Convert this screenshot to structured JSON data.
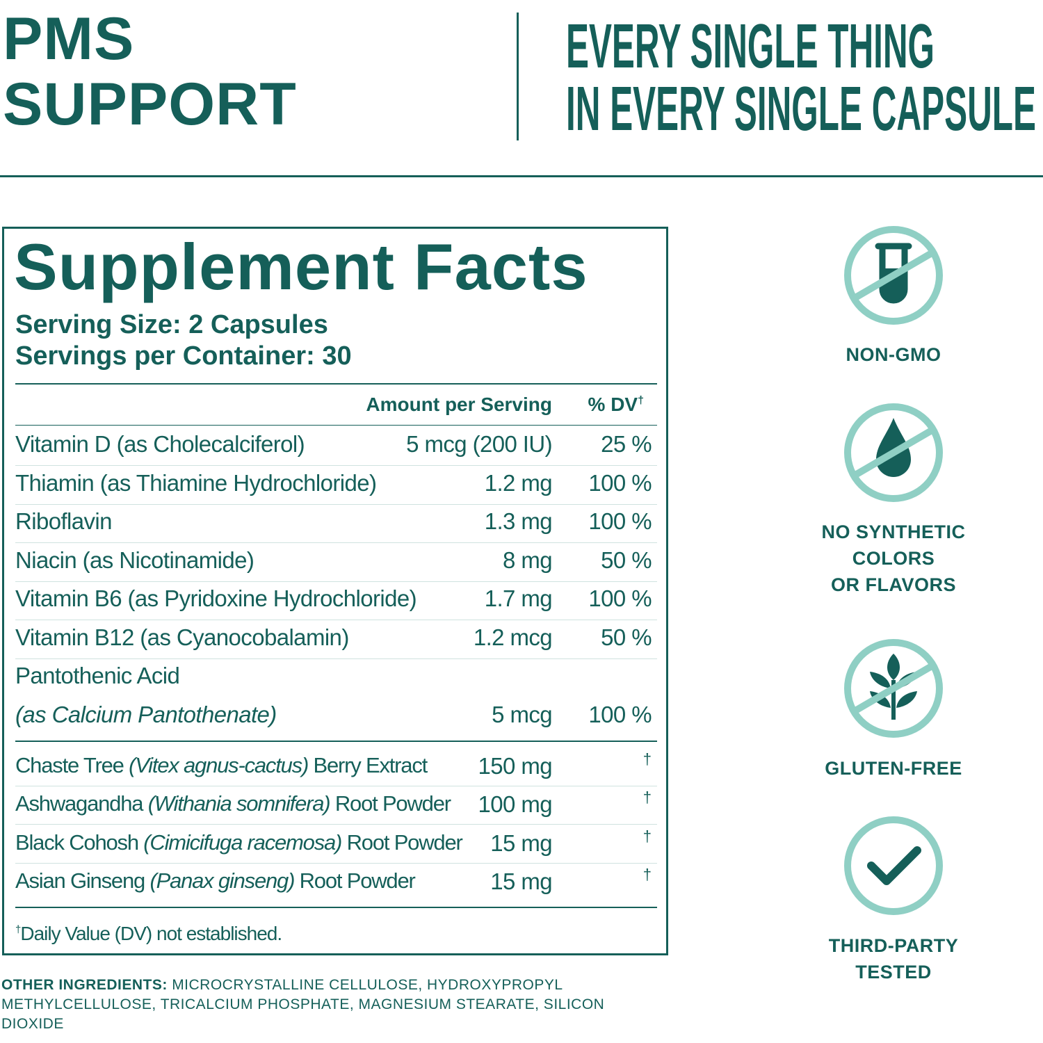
{
  "header": {
    "title_lines": [
      "PMS",
      "SUPPORT"
    ],
    "tagline_lines": [
      "EVERY SINGLE THING",
      "IN EVERY SINGLE CAPSULE"
    ]
  },
  "facts": {
    "title": "Supplement Facts",
    "serving_size": "Serving Size: 2 Capsules",
    "servings": "Servings per Container: 30",
    "col_amount": "Amount per Serving",
    "col_dv": "% DV",
    "dv_mark": "†",
    "vitamins": [
      {
        "name": "Vitamin D (as Cholecalciferol)",
        "amount": "5 mcg (200 IU)",
        "dv": "25 %"
      },
      {
        "name": "Thiamin (as Thiamine Hydrochloride)",
        "amount": "1.2 mg",
        "dv": "100 %"
      },
      {
        "name": "Riboflavin",
        "amount": "1.3 mg",
        "dv": "100 %"
      },
      {
        "name": "Niacin (as Nicotinamide)",
        "amount": "8 mg",
        "dv": "50 %"
      },
      {
        "name": "Vitamin B6 (as Pyridoxine Hydrochloride)",
        "amount": "1.7 mg",
        "dv": "100 %"
      },
      {
        "name": "Vitamin B12 (as Cyanocobalamin)",
        "amount": "1.2 mcg",
        "dv": "50 %"
      }
    ],
    "pantothenic": {
      "name": "Pantothenic Acid",
      "source": "(as Calcium Pantothenate)",
      "amount": "5 mcg",
      "dv": "100 %"
    },
    "herbs": [
      {
        "name": "Chaste Tree",
        "latin": "(Vitex agnus-cactus)",
        "part": "Berry Extract",
        "amount": "150 mg"
      },
      {
        "name": "Ashwagandha",
        "latin": "(Withania somnifera)",
        "part": "Root Powder",
        "amount": "100 mg"
      },
      {
        "name": "Black Cohosh",
        "latin": "(Cimicifuga racemosa)",
        "part": "Root Powder",
        "amount": "15 mg"
      },
      {
        "name": "Asian Ginseng",
        "latin": "(Panax ginseng)",
        "part": "Root Powder",
        "amount": "15 mg"
      }
    ],
    "footnote": "Daily Value (DV) not established."
  },
  "other_ingredients": {
    "label": "OTHER INGREDIENTS:",
    "text": "MICROCRYSTALLINE CELLULOSE, HYDROXYPROPYL METHYLCELLULOSE, TRICALCIUM PHOSPHATE, MAGNESIUM STEARATE, SILICON DIOXIDE"
  },
  "badges": [
    {
      "lines": [
        "NON-GMO"
      ]
    },
    {
      "lines": [
        "NO SYNTHETIC",
        "COLORS",
        "OR FLAVORS"
      ]
    },
    {
      "lines": [
        "GLUTEN-FREE"
      ]
    },
    {
      "lines": [
        "THIRD-PARTY",
        "TESTED"
      ]
    }
  ]
}
